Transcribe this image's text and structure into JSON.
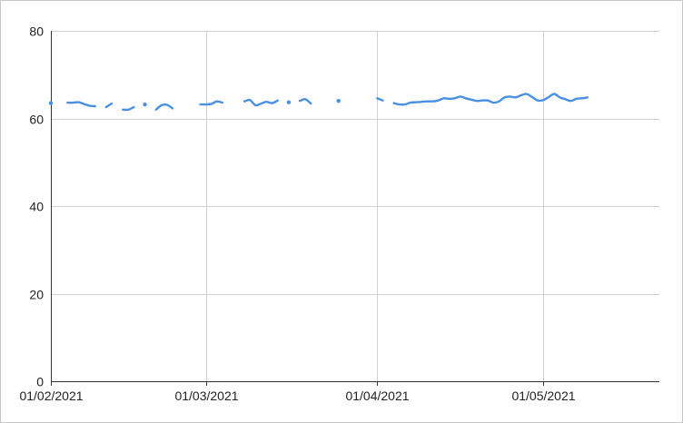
{
  "colors": {
    "series": "#4a90e2",
    "grid": "#d0d0d0",
    "axis": "#333333",
    "text": "#222222"
  },
  "chart_data": {
    "type": "line",
    "title": "",
    "xlabel": "",
    "ylabel": "",
    "ylim": [
      0,
      80
    ],
    "xlim": [
      "2021-02-01",
      "2021-05-22"
    ],
    "grid": true,
    "legend": "none",
    "y_ticks": [
      {
        "value": 0,
        "label": "0"
      },
      {
        "value": 20,
        "label": "20"
      },
      {
        "value": 40,
        "label": "40"
      },
      {
        "value": 60,
        "label": "60"
      },
      {
        "value": 80,
        "label": "80"
      }
    ],
    "x_ticks": [
      {
        "value": "2021-02-01",
        "label": "01/02/2021"
      },
      {
        "value": "2021-03-01",
        "label": "01/03/2021"
      },
      {
        "value": "2021-04-01",
        "label": "01/04/2021"
      },
      {
        "value": "2021-05-01",
        "label": "01/05/2021"
      }
    ],
    "series": [
      {
        "color": "#4a90e2",
        "points": [
          [
            "2021-02-01",
            63.5
          ],
          [
            "2021-02-02",
            null
          ],
          [
            "2021-02-04",
            63.6
          ],
          [
            "2021-02-05",
            63.6
          ],
          [
            "2021-02-06",
            63.7
          ],
          [
            "2021-02-07",
            63.3
          ],
          [
            "2021-02-08",
            62.9
          ],
          [
            "2021-02-09",
            62.8
          ],
          [
            "2021-02-10",
            null
          ],
          [
            "2021-02-11",
            62.6
          ],
          [
            "2021-02-12",
            63.4
          ],
          [
            "2021-02-13",
            null
          ],
          [
            "2021-02-14",
            62.0
          ],
          [
            "2021-02-15",
            62.0
          ],
          [
            "2021-02-16",
            62.6
          ],
          [
            "2021-02-17",
            null
          ],
          [
            "2021-02-18",
            63.2
          ],
          [
            "2021-02-19",
            null
          ],
          [
            "2021-02-20",
            62.0
          ],
          [
            "2021-02-21",
            63.0
          ],
          [
            "2021-02-22",
            63.1
          ],
          [
            "2021-02-23",
            62.3
          ],
          [
            "2021-02-24",
            null
          ],
          [
            "2021-02-28",
            63.2
          ],
          [
            "2021-03-01",
            63.2
          ],
          [
            "2021-03-02",
            63.3
          ],
          [
            "2021-03-03",
            63.9
          ],
          [
            "2021-03-04",
            63.6
          ],
          [
            "2021-03-05",
            null
          ],
          [
            "2021-03-08",
            63.9
          ],
          [
            "2021-03-09",
            64.2
          ],
          [
            "2021-03-10",
            63.0
          ],
          [
            "2021-03-11",
            63.4
          ],
          [
            "2021-03-12",
            63.8
          ],
          [
            "2021-03-13",
            63.5
          ],
          [
            "2021-03-14",
            64.1
          ],
          [
            "2021-03-15",
            null
          ],
          [
            "2021-03-16",
            63.7
          ],
          [
            "2021-03-17",
            null
          ],
          [
            "2021-03-18",
            64.0
          ],
          [
            "2021-03-19",
            64.4
          ],
          [
            "2021-03-20",
            63.4
          ],
          [
            "2021-03-21",
            null
          ],
          [
            "2021-03-25",
            64.0
          ],
          [
            "2021-03-26",
            null
          ],
          [
            "2021-04-01",
            64.6
          ],
          [
            "2021-04-02",
            64.1
          ],
          [
            "2021-04-03",
            null
          ],
          [
            "2021-04-04",
            63.5
          ],
          [
            "2021-04-05",
            63.2
          ],
          [
            "2021-04-06",
            63.2
          ],
          [
            "2021-04-07",
            63.6
          ],
          [
            "2021-04-08",
            63.7
          ],
          [
            "2021-04-09",
            63.8
          ],
          [
            "2021-04-10",
            63.9
          ],
          [
            "2021-04-11",
            63.9
          ],
          [
            "2021-04-12",
            64.1
          ],
          [
            "2021-04-13",
            64.6
          ],
          [
            "2021-04-14",
            64.5
          ],
          [
            "2021-04-15",
            64.6
          ],
          [
            "2021-04-16",
            65.0
          ],
          [
            "2021-04-17",
            64.6
          ],
          [
            "2021-04-18",
            64.3
          ],
          [
            "2021-04-19",
            64.0
          ],
          [
            "2021-04-20",
            64.1
          ],
          [
            "2021-04-21",
            64.1
          ],
          [
            "2021-04-22",
            63.6
          ],
          [
            "2021-04-23",
            63.9
          ],
          [
            "2021-04-24",
            64.8
          ],
          [
            "2021-04-25",
            65.0
          ],
          [
            "2021-04-26",
            64.8
          ],
          [
            "2021-04-27",
            65.3
          ],
          [
            "2021-04-28",
            65.6
          ],
          [
            "2021-04-29",
            64.9
          ],
          [
            "2021-04-30",
            64.1
          ],
          [
            "2021-05-01",
            64.2
          ],
          [
            "2021-05-02",
            64.9
          ],
          [
            "2021-05-03",
            65.6
          ],
          [
            "2021-05-04",
            64.8
          ],
          [
            "2021-05-05",
            64.4
          ],
          [
            "2021-05-06",
            64.0
          ],
          [
            "2021-05-07",
            64.5
          ],
          [
            "2021-05-08",
            64.6
          ],
          [
            "2021-05-09",
            64.8
          ]
        ]
      }
    ]
  }
}
